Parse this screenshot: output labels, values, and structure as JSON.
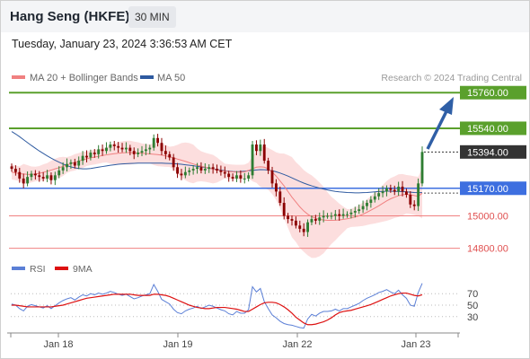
{
  "header": {
    "title": "Hang Seng (HKFE)",
    "timeframe": "30 MIN"
  },
  "timestamp": "Tuesday, January 23, 2024 3:36:53 AM CET",
  "legend": {
    "ma20": {
      "label": "MA 20 + Bollinger Bands",
      "color": "#f08080"
    },
    "ma50": {
      "label": "MA 50",
      "color": "#2e5aa0"
    },
    "credit": "Research © 2024 Trading Central"
  },
  "rsi_legend": {
    "rsi": {
      "label": "RSI",
      "color": "#5b7fd6"
    },
    "ma": {
      "label": "9MA",
      "color": "#dd1111"
    }
  },
  "colors": {
    "resistance": "#5aa02c",
    "pivot": "#3d6fe0",
    "support": "#f08080",
    "last": "#333333",
    "bull": "#2e7d32",
    "bear": "#8b0000",
    "band": "#fcdede",
    "arrow": "#2f5fa6"
  },
  "chart_data": [
    {
      "type": "candlestick",
      "title": "Hang Seng (HKFE)",
      "timeframe": "30 MIN",
      "ylim": [
        14770,
        15800
      ],
      "x_tick_labels": [
        "Jan 18",
        "Jan 19",
        "Jan 22",
        "Jan 23"
      ],
      "levels": [
        {
          "value": 15760,
          "label": "15760.00",
          "kind": "resistance"
        },
        {
          "value": 15540,
          "label": "15540.00",
          "kind": "resistance"
        },
        {
          "value": 15394,
          "label": "15394.00",
          "kind": "last"
        },
        {
          "value": 15170,
          "label": "15170.00",
          "kind": "pivot"
        },
        {
          "value": 15000,
          "label": "15000.00",
          "kind": "support"
        },
        {
          "value": 14800,
          "label": "14800.00",
          "kind": "support"
        }
      ],
      "close": [
        15290,
        15270,
        15230,
        15200,
        15240,
        15260,
        15250,
        15240,
        15230,
        15250,
        15220,
        15250,
        15280,
        15300,
        15320,
        15330,
        15310,
        15340,
        15370,
        15360,
        15390,
        15380,
        15410,
        15400,
        15420,
        15440,
        15430,
        15420,
        15410,
        15420,
        15400,
        15380,
        15390,
        15400,
        15410,
        15420,
        15480,
        15450,
        15400,
        15380,
        15360,
        15300,
        15260,
        15250,
        15270,
        15280,
        15290,
        15300,
        15280,
        15290,
        15300,
        15290,
        15280,
        15270,
        15260,
        15240,
        15230,
        15250,
        15230,
        15230,
        15250,
        15440,
        15400,
        15440,
        15340,
        15280,
        15200,
        15150,
        15080,
        15000,
        14980,
        14970,
        14940,
        14920,
        14900,
        14960,
        14980,
        14970,
        14990,
        15000,
        15000,
        15000,
        15010,
        15000,
        15010,
        15010,
        15020,
        15030,
        15040,
        15060,
        15080,
        15100,
        15120,
        15140,
        15150,
        15170,
        15160,
        15150,
        15180,
        15150,
        15130,
        15070,
        15060,
        15200,
        15394
      ],
      "series": [
        {
          "name": "MA 20",
          "values": [
            15270,
            15265,
            15260,
            15258,
            15256,
            15255,
            15258,
            15262,
            15268,
            15275,
            15282,
            15290,
            15297,
            15305,
            15313,
            15322,
            15330,
            15338,
            15345,
            15352,
            15358,
            15362,
            15367,
            15372,
            15376,
            15380,
            15383,
            15386,
            15388,
            15390,
            15390,
            15389,
            15388,
            15386,
            15384,
            15382,
            15380,
            15378,
            15374,
            15370,
            15364,
            15358,
            15350,
            15343,
            15336,
            15328,
            15320,
            15313,
            15306,
            15300,
            15294,
            15288,
            15283,
            15279,
            15276,
            15273,
            15271,
            15270,
            15270,
            15271,
            15280,
            15290,
            15300,
            15302,
            15300,
            15290,
            15270,
            15245,
            15215,
            15185,
            15150,
            15115,
            15085,
            15055,
            15030,
            15010,
            14995,
            14985,
            14978,
            14974,
            14972,
            14972,
            14973,
            14975,
            14978,
            14982,
            14987,
            14993,
            15000,
            15010,
            15022,
            15035,
            15048,
            15062,
            15077,
            15092,
            15105,
            15115,
            15124,
            15130,
            15133,
            15130,
            15125,
            15120,
            15140
          ]
        },
        {
          "name": "MA 50",
          "values": [
            15520,
            15505,
            15488,
            15470,
            15452,
            15434,
            15417,
            15400,
            15385,
            15370,
            15356,
            15343,
            15331,
            15320,
            15310,
            15302,
            15296,
            15292,
            15290,
            15290,
            15292,
            15296,
            15300,
            15304,
            15308,
            15312,
            15315,
            15318,
            15320,
            15322,
            15323,
            15324,
            15325,
            15325,
            15325,
            15325,
            15325,
            15325,
            15325,
            15324,
            15323,
            15322,
            15320,
            15318,
            15315,
            15312,
            15309,
            15305,
            15302,
            15298,
            15294,
            15290,
            15286,
            15282,
            15278,
            15275,
            15273,
            15272,
            15273,
            15275,
            15278,
            15281,
            15283,
            15285,
            15284,
            15282,
            15278,
            15272,
            15264,
            15255,
            15245,
            15234,
            15223,
            15212,
            15202,
            15193,
            15185,
            15178,
            15171,
            15165,
            15160,
            15155,
            15151,
            15148,
            15146,
            15144,
            15143,
            15142,
            15142,
            15143,
            15144,
            15146,
            15148,
            15150,
            15151,
            15152,
            15152,
            15151,
            15150,
            15149,
            15148,
            15146,
            15144,
            15143,
            15143
          ]
        }
      ]
    },
    {
      "type": "line",
      "title": "RSI",
      "ylim": [
        0,
        100
      ],
      "y_ticks": [
        70,
        50,
        30
      ],
      "series": [
        {
          "name": "RSI",
          "values": [
            52,
            50,
            44,
            40,
            48,
            51,
            49,
            47,
            45,
            49,
            44,
            49,
            54,
            58,
            61,
            63,
            59,
            64,
            68,
            66,
            70,
            68,
            71,
            69,
            71,
            74,
            72,
            69,
            67,
            69,
            65,
            61,
            63,
            66,
            68,
            70,
            86,
            74,
            60,
            56,
            52,
            43,
            37,
            35,
            40,
            43,
            45,
            48,
            44,
            47,
            50,
            48,
            45,
            42,
            40,
            35,
            33,
            39,
            36,
            36,
            42,
            82,
            73,
            79,
            56,
            44,
            33,
            28,
            22,
            18,
            16,
            15,
            13,
            11,
            10,
            26,
            34,
            31,
            36,
            39,
            39,
            40,
            43,
            40,
            44,
            44,
            47,
            50,
            53,
            58,
            62,
            65,
            68,
            72,
            74,
            77,
            73,
            70,
            76,
            68,
            62,
            50,
            48,
            72,
            88
          ]
        },
        {
          "name": "9MA",
          "values": [
            50,
            50,
            49,
            48,
            47,
            47,
            47,
            47,
            47,
            47,
            47,
            48,
            49,
            50,
            52,
            54,
            56,
            58,
            60,
            62,
            63,
            64,
            65,
            66,
            67,
            68,
            69,
            69,
            69,
            69,
            69,
            68,
            67,
            67,
            67,
            67,
            69,
            69,
            68,
            67,
            65,
            62,
            59,
            56,
            53,
            50,
            48,
            46,
            45,
            44,
            44,
            45,
            46,
            46,
            46,
            45,
            44,
            43,
            41,
            39,
            39,
            43,
            47,
            51,
            54,
            55,
            55,
            54,
            51,
            47,
            42,
            36,
            29,
            24,
            19,
            16,
            16,
            17,
            19,
            21,
            24,
            28,
            33,
            37,
            39,
            40,
            41,
            43,
            45,
            47,
            49,
            51,
            54,
            57,
            60,
            63,
            66,
            68,
            70,
            71,
            71,
            69,
            67,
            66,
            68
          ]
        }
      ]
    }
  ]
}
